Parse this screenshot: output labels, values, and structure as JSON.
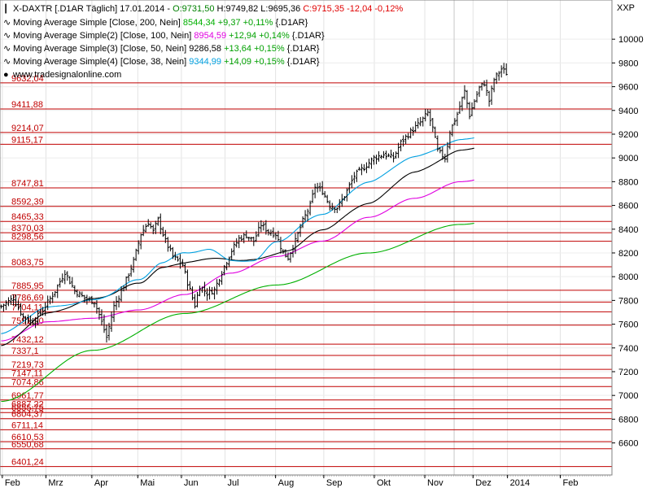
{
  "header": {
    "symbol_text": "X-DAXTR [.D1AR  Täglich] 17.01.2014 - ",
    "ohlc": [
      {
        "text": "O:9731,50",
        "color": "#008000"
      },
      {
        "text": " H:9749,82 L:9695,36 ",
        "color": "#000000"
      },
      {
        "text": "C:9715,35 -12,04 -0,12%",
        "color": "#e00000"
      }
    ],
    "currency": "XXP",
    "website": "www.tradesignalonline.com"
  },
  "indicators": [
    {
      "label": "Moving Average Simple [Close, 200, Nein]",
      "value": "8544,34",
      "change": "+9,37 +0,11%",
      "suffix": "{.D1AR}",
      "color": "#00b000"
    },
    {
      "label": "Moving Average Simple(2) [Close, 100, Nein]",
      "value": "8954,59",
      "change": "+12,94 +0,14%",
      "suffix": "{.D1AR}",
      "color": "#e000e0"
    },
    {
      "label": "Moving Average Simple(3) [Close, 50, Nein]",
      "value": "9286,58",
      "change": "+13,64 +0,15%",
      "suffix": "{.D1AR}",
      "color": "#000000"
    },
    {
      "label": "Moving Average Simple(4) [Close, 38, Nein]",
      "value": "9344,99",
      "change": "+14,09 +0,15%",
      "suffix": "{.D1AR}",
      "color": "#00a0e0"
    }
  ],
  "chart_data": {
    "type": "ohlc",
    "ylim": [
      6330,
      10330
    ],
    "y_ticks": [
      6600,
      6800,
      7000,
      7200,
      7400,
      7600,
      7800,
      8000,
      8200,
      8400,
      8600,
      8800,
      9000,
      9200,
      9400,
      9600,
      9800,
      10000
    ],
    "x_months": [
      {
        "label": "Feb",
        "pos": 0.5
      },
      {
        "label": "Mrz",
        "pos": 19.5
      },
      {
        "label": "Apr",
        "pos": 39.5
      },
      {
        "label": "Mai",
        "pos": 59.5
      },
      {
        "label": "Jun",
        "pos": 78.5
      },
      {
        "label": "Jul",
        "pos": 97.5
      },
      {
        "label": "Aug",
        "pos": 119.5
      },
      {
        "label": "Sep",
        "pos": 140.5
      },
      {
        "label": "Okt",
        "pos": 162.5
      },
      {
        "label": "Nov",
        "pos": 184.5
      },
      {
        "label": "Dez",
        "pos": 205.5
      },
      {
        "label": "2014",
        "pos": 220.5
      },
      {
        "label": "Feb",
        "pos": 243.5
      }
    ],
    "last_bar_index": 232,
    "x_range": [
      -0.5,
      266
    ],
    "horizontal_levels": [
      9632.04,
      9411.88,
      9214.07,
      9115.17,
      8747.81,
      8592.39,
      8465.33,
      8370.03,
      8298.56,
      8083.75,
      7885.95,
      7786.69,
      7704.11,
      7591.9,
      7432.12,
      7337.1,
      7219.73,
      7147.11,
      7074.86,
      6961.77,
      6887.22,
      6855.75,
      6804.37,
      6711.14,
      6610.53,
      6550.68,
      6401.24
    ],
    "level_labels": [
      "9632,04",
      "9411,88",
      "9214,07",
      "9115,17",
      "8747,81",
      "8592,39",
      "8465,33",
      "8370,03",
      "8298,56",
      "8083,75",
      "7885,95",
      "7786,69",
      "7704,11",
      "7591,90",
      "7432,12",
      "7337,1",
      "7219,73",
      "7147,11",
      "7074,86",
      "6961,77",
      "6887,22",
      "6855,75",
      "6804,37",
      "6711,14",
      "6610,53",
      "6550,68",
      "6401,24"
    ],
    "price_anchors": [
      [
        0,
        7750
      ],
      [
        5,
        7820
      ],
      [
        9,
        7660
      ],
      [
        13,
        7620
      ],
      [
        17,
        7720
      ],
      [
        22,
        7880
      ],
      [
        26,
        8040
      ],
      [
        30,
        7880
      ],
      [
        34,
        7820
      ],
      [
        38,
        7790
      ],
      [
        40,
        7680
      ],
      [
        43,
        7490
      ],
      [
        46,
        7750
      ],
      [
        50,
        7920
      ],
      [
        54,
        8130
      ],
      [
        57,
        8360
      ],
      [
        60,
        8460
      ],
      [
        62,
        8380
      ],
      [
        64,
        8480
      ],
      [
        67,
        8300
      ],
      [
        70,
        8170
      ],
      [
        74,
        8100
      ],
      [
        76,
        7950
      ],
      [
        79,
        7760
      ],
      [
        81,
        7920
      ],
      [
        84,
        7860
      ],
      [
        87,
        7890
      ],
      [
        90,
        8040
      ],
      [
        94,
        8220
      ],
      [
        97,
        8320
      ],
      [
        100,
        8350
      ],
      [
        103,
        8300
      ],
      [
        106,
        8440
      ],
      [
        109,
        8380
      ],
      [
        112,
        8360
      ],
      [
        115,
        8200
      ],
      [
        117,
        8160
      ],
      [
        120,
        8300
      ],
      [
        123,
        8470
      ],
      [
        126,
        8600
      ],
      [
        128,
        8760
      ],
      [
        131,
        8720
      ],
      [
        134,
        8600
      ],
      [
        137,
        8580
      ],
      [
        140,
        8680
      ],
      [
        144,
        8850
      ],
      [
        148,
        8920
      ],
      [
        152,
        9000
      ],
      [
        156,
        9030
      ],
      [
        160,
        9000
      ],
      [
        163,
        9130
      ],
      [
        167,
        9220
      ],
      [
        171,
        9300
      ],
      [
        174,
        9380
      ],
      [
        176,
        9250
      ],
      [
        178,
        9060
      ],
      [
        181,
        9000
      ],
      [
        183,
        9220
      ],
      [
        186,
        9370
      ],
      [
        189,
        9560
      ],
      [
        191,
        9360
      ],
      [
        193,
        9480
      ],
      [
        195,
        9590
      ],
      [
        197,
        9630
      ],
      [
        199,
        9480
      ],
      [
        201,
        9660
      ],
      [
        204,
        9750
      ],
      [
        206,
        9715
      ]
    ],
    "series": [
      {
        "name": "Moving Average Simple [Close, 200, Nein]",
        "color": "#00b000",
        "points": [
          [
            0,
            6950
          ],
          [
            40,
            7380
          ],
          [
            80,
            7690
          ],
          [
            120,
            7930
          ],
          [
            160,
            8200
          ],
          [
            200,
            8440
          ],
          [
            232,
            8544.34
          ]
        ]
      },
      {
        "name": "Moving Average Simple(2) [Close, 100, Nein]",
        "color": "#e000e0",
        "points": [
          [
            0,
            7460
          ],
          [
            20,
            7620
          ],
          [
            40,
            7650
          ],
          [
            60,
            7720
          ],
          [
            80,
            7850
          ],
          [
            100,
            8030
          ],
          [
            120,
            8170
          ],
          [
            140,
            8300
          ],
          [
            160,
            8500
          ],
          [
            180,
            8660
          ],
          [
            200,
            8800
          ],
          [
            232,
            8954.59
          ]
        ]
      },
      {
        "name": "Moving Average Simple(3) [Close, 50, Nein]",
        "color": "#000000",
        "points": [
          [
            0,
            7420
          ],
          [
            20,
            7690
          ],
          [
            40,
            7810
          ],
          [
            60,
            7940
          ],
          [
            70,
            8080
          ],
          [
            90,
            8150
          ],
          [
            110,
            8140
          ],
          [
            125,
            8220
          ],
          [
            140,
            8400
          ],
          [
            160,
            8620
          ],
          [
            180,
            8880
          ],
          [
            200,
            9060
          ],
          [
            232,
            9286.58
          ]
        ]
      },
      {
        "name": "Moving Average Simple(4) [Close, 38, Nein]",
        "color": "#00a0e0",
        "points": [
          [
            0,
            7520
          ],
          [
            20,
            7740
          ],
          [
            40,
            7800
          ],
          [
            60,
            7970
          ],
          [
            70,
            8120
          ],
          [
            80,
            8200
          ],
          [
            90,
            8230
          ],
          [
            100,
            8140
          ],
          [
            110,
            8130
          ],
          [
            120,
            8300
          ],
          [
            140,
            8530
          ],
          [
            160,
            8800
          ],
          [
            180,
            9010
          ],
          [
            200,
            9150
          ],
          [
            232,
            9344.99
          ]
        ]
      }
    ]
  }
}
